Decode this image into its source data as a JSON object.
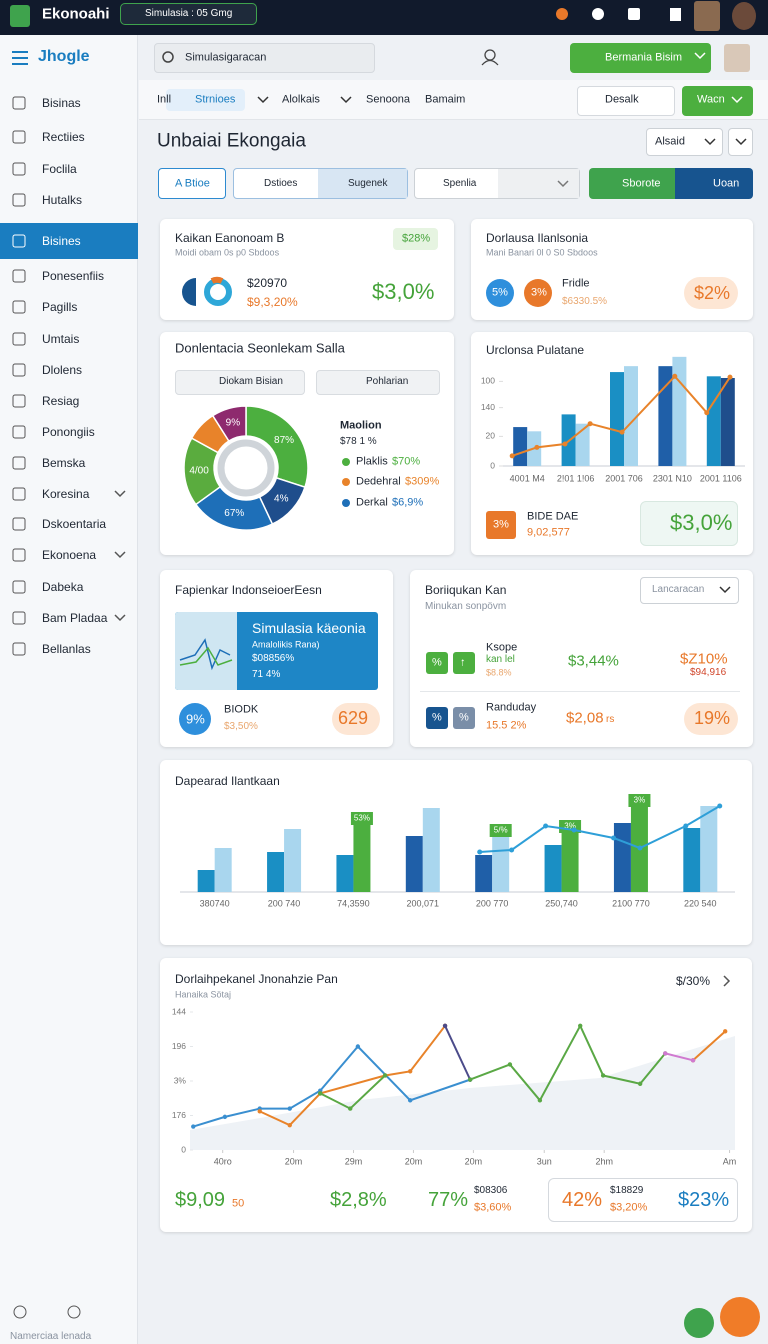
{
  "topbar": {
    "app": "Ekonoahi",
    "chip": "Simulasia : 05 Gmg"
  },
  "sidebar": {
    "logo": "Jhogle",
    "items": [
      "Bisinas",
      "Rectiies",
      "Foclila",
      "Hutalks",
      "Bisines",
      "Ponesenfiis",
      "Pagills",
      "Umtais",
      "Dlolens",
      "Resiag",
      "Ponongiis",
      "Bemska",
      "Koresina",
      "Dskoentaria",
      "Ekonoena",
      "Dabeka",
      "Bam Pladaa",
      "Bellanlas"
    ],
    "active": 4,
    "footer": "Namerciaa lenada"
  },
  "toolbar": {
    "search": "Simulasigaracan",
    "button": "Bermania Bisim"
  },
  "tabs": {
    "items": [
      "Inll",
      "Strnioes",
      "Alolkais",
      "Senoona",
      "Bamaim"
    ],
    "active": 1,
    "right": [
      "Desalk",
      "Wacn"
    ]
  },
  "page": {
    "title": "Unbaiai Ekongaia",
    "dropdown": "Alsaid"
  },
  "filters": {
    "a": "A Btioe",
    "b": "Dstioes",
    "c": "Sugenek",
    "d": "Spenlia",
    "e": "Sborote",
    "f": "Uoan"
  },
  "cards": {
    "c1": {
      "title": "Kaikan Eanonoam B",
      "subtitle": "Moidi obam 0s p0 Sbdoos",
      "badge": "$28%",
      "value": "$20970",
      "change": "$9,3,20%",
      "big": "$3,0%"
    },
    "c2": {
      "title": "Dorlausa Ilanlsonia",
      "subtitle": "Mani Banari 0l 0 S0 Sbdoos",
      "circle1": "5%",
      "circle2": "3%",
      "name": "Fridle",
      "value": "$6330.5%",
      "badge": "$2%"
    },
    "c3": {
      "title": "Donlentacia Seonlekam Salla",
      "buttons": [
        "Diokam Bisian",
        "Pohlarian"
      ],
      "legend_title": "Maolion",
      "legend_sub": "$78 1 %",
      "legend": [
        {
          "name": "Plaklis",
          "value": "$70%",
          "color": "#4caf3f"
        },
        {
          "name": "Dedehral",
          "value": "$309%",
          "color": "#e8832a"
        },
        {
          "name": "Derkal",
          "value": "$6,9%",
          "color": "#1e6fb8"
        }
      ],
      "chart": {
        "type": "donut",
        "values": [
          30,
          13,
          22,
          18,
          8,
          9
        ],
        "colors": [
          "#4caf3f",
          "#1f4e8c",
          "#1e6fb8",
          "#5aac3e",
          "#e8832a",
          "#8e2a6e"
        ],
        "labels": [
          "87%",
          "4%",
          "67%",
          "4/00",
          null,
          "9%"
        ]
      }
    },
    "c4": {
      "title": "Urclonsa Pulatane",
      "badge": "3%",
      "name": "BIDE DAE",
      "sub": "9,02,577",
      "big": "$3,0%",
      "chart": {
        "type": "bar-line",
        "categories": [
          "4001 M4",
          "2!01 1!06",
          "2001 706",
          "2301 N10",
          "2001 1106"
        ],
        "series": [
          {
            "values": [
              46,
              61,
              111,
              118,
              106
            ],
            "colors": [
              "#1f5fa8",
              "#1a8fc4",
              "#1a8fc4",
              "#1f5fa8",
              "#1a8fc4"
            ]
          },
          {
            "values": [
              41,
              50,
              118,
              129,
              104
            ],
            "colors": [
              "#a9d6ee",
              "#a9d6ee",
              "#a9d6ee",
              "#a9d6ee",
              "#1f4e8c"
            ]
          }
        ],
        "line": {
          "x": [
            -0.31,
            0.2,
            0.78,
            1.3,
            1.96,
            3.05,
            3.71,
            4.19
          ],
          "values": [
            12,
            22,
            26,
            50,
            40,
            106,
            63,
            105
          ],
          "color": "#e8832a"
        },
        "ylim": [
          0,
          130
        ],
        "yticks": [
          0,
          {
            "value": 35,
            "label": "20"
          },
          {
            "value": 69,
            "label": "140"
          },
          {
            "value": 100,
            "label": "100"
          }
        ]
      }
    },
    "c5": {
      "title": "Fapienkar IndonseioerEesn",
      "banner": [
        "Simulasia käeonia",
        "Amalolikis Rana)",
        "$08856%",
        "71 4%"
      ],
      "circle": "9%",
      "name": "BIODK",
      "sub": "$3,50%",
      "pill": "629"
    },
    "c6": {
      "title": "Boriiqukan Kan",
      "subtitle": "Minukan sonpövm",
      "dropdown": "Lancaracan",
      "rows": [
        {
          "icons": [
            "%",
            "↑"
          ],
          "name": "Ksope",
          "sub": "kan lel",
          "note": "$8.8%",
          "value": "$3,44%",
          "value2": "$Z10%",
          "value3": "$94,916"
        },
        {
          "icons": [
            "%",
            "%"
          ],
          "name": "Randuday",
          "sub": "15.5 2%",
          "value": "$2,08",
          "unit": "rs",
          "pill": "19%"
        }
      ]
    },
    "c7": {
      "title": "Dapearad Ilantkaan",
      "chart": {
        "type": "bar-line",
        "categories": [
          "380740",
          "200 740",
          "74,3590",
          "200,071",
          "200 770",
          "250,740",
          "2100 770",
          "220 540"
        ],
        "series": [
          {
            "values": [
              22,
              40,
              37,
              56,
              37,
              47,
              69,
              64
            ],
            "colors": [
              "#1a8fc4",
              "#1a8fc4",
              "#1a8fc4",
              "#1f5fa8",
              "#1f5fa8",
              "#1a8fc4",
              "#1f5fa8",
              "#1a8fc4"
            ]
          },
          {
            "values": [
              44,
              63,
              72,
              84,
              60,
              64,
              90,
              86
            ],
            "colors": [
              "#a9d6ee",
              "#a9d6ee",
              "#4caf3f",
              "#a9d6ee",
              "#a9d6ee",
              "#4caf3f",
              "#4caf3f",
              "#a9d6ee"
            ],
            "tags": [
              null,
              null,
              "53%",
              null,
              "5/%",
              "3%",
              "3%",
              null
            ]
          }
        ],
        "line": {
          "x": [
            3.82,
            4.28,
            4.77,
            5.18,
            5.75,
            6.13,
            6.79,
            7.28
          ],
          "values": [
            40,
            42,
            66,
            62,
            54,
            44,
            66,
            86
          ],
          "color": "#2e9fd8"
        },
        "ylim": [
          0,
          100
        ]
      }
    },
    "c8": {
      "title": "Dorlaihpekanel Jnonahzie Pan",
      "subtitle": "Hanaika Sötaj",
      "link": "$/30%",
      "chart": {
        "type": "line",
        "xlim": [
          0,
          100
        ],
        "ylim": [
          0,
          100
        ],
        "yticks": [
          0,
          {
            "value": 25,
            "label": "176"
          },
          {
            "value": 50,
            "label": "3%"
          },
          {
            "value": 75,
            "label": "196"
          },
          {
            "value": 100,
            "label": "144"
          }
        ],
        "xticks": [
          {
            "value": 6,
            "label": "40ro"
          },
          {
            "value": 19,
            "label": "20m"
          },
          {
            "value": 30,
            "label": "29m"
          },
          {
            "value": 41,
            "label": "20m"
          },
          {
            "value": 52,
            "label": "20m"
          },
          {
            "value": 65,
            "label": "3un"
          },
          {
            "value": 76,
            "label": "2hm"
          },
          {
            "value": 99,
            "label": "Am"
          }
        ],
        "series": [
          {
            "color": "#3a8fd0",
            "x": [
              0.6,
              6.4,
              12.8,
              18.3,
              23.9,
              30.8,
              40.4,
              51.4
            ],
            "values": [
              17,
              24,
              30,
              30,
              43,
              75,
              36,
              51
            ]
          },
          {
            "color": "#e8832a",
            "x": [
              12.8,
              18.3,
              23.9,
              35.8,
              40.4,
              46.8,
              null,
              92.3,
              98.2
            ],
            "values": [
              28,
              18,
              41,
              54,
              57,
              90,
              null,
              65,
              86
            ]
          },
          {
            "color": "#4b4b8a",
            "x": [
              46.8,
              51.4
            ],
            "values": [
              90,
              51
            ]
          },
          {
            "color": "#5aa845",
            "x": [
              23.9,
              29.4,
              35.8,
              null,
              51.4,
              58.7,
              64.2,
              71.6,
              75.8,
              82.6,
              87.2
            ],
            "values": [
              41,
              30,
              54,
              null,
              51,
              62,
              36,
              90,
              54,
              48,
              70
            ]
          },
          {
            "color": "#d07ad0",
            "x": [
              87.2,
              92.3
            ],
            "values": [
              70,
              65
            ]
          }
        ]
      },
      "stats": [
        "$9,09",
        "50",
        "$2,8%",
        "77%",
        "$08306",
        "$3,60%",
        "42%",
        "$18829",
        "$3,20%",
        "$23%"
      ]
    }
  }
}
